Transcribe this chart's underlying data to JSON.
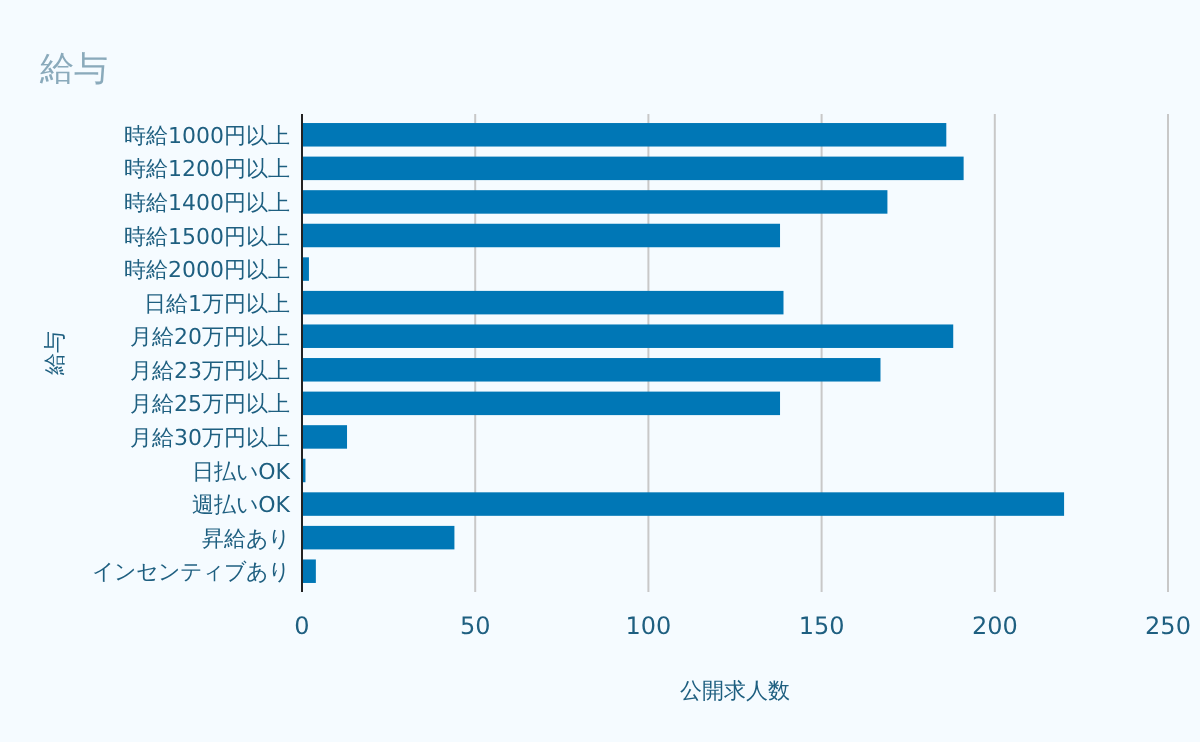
{
  "chart_data": {
    "type": "bar",
    "orientation": "horizontal",
    "title": "給与",
    "xlabel": "公開求人数",
    "ylabel": "給与",
    "categories": [
      "時給1000円以上",
      "時給1200円以上",
      "時給1400円以上",
      "時給1500円以上",
      "時給2000円以上",
      "日給1万円以上",
      "月給20万円以上",
      "月給23万円以上",
      "月給25万円以上",
      "月給30万円以上",
      "日払いOK",
      "週払いOK",
      "昇給あり",
      "インセンティブあり"
    ],
    "values": [
      186,
      191,
      169,
      138,
      2,
      139,
      188,
      167,
      138,
      13,
      1,
      220,
      44,
      4
    ],
    "color": "#0077b6",
    "xlim": [
      0,
      250
    ],
    "xticks": [
      0,
      50,
      100,
      150,
      200,
      250
    ],
    "grid": "x"
  }
}
